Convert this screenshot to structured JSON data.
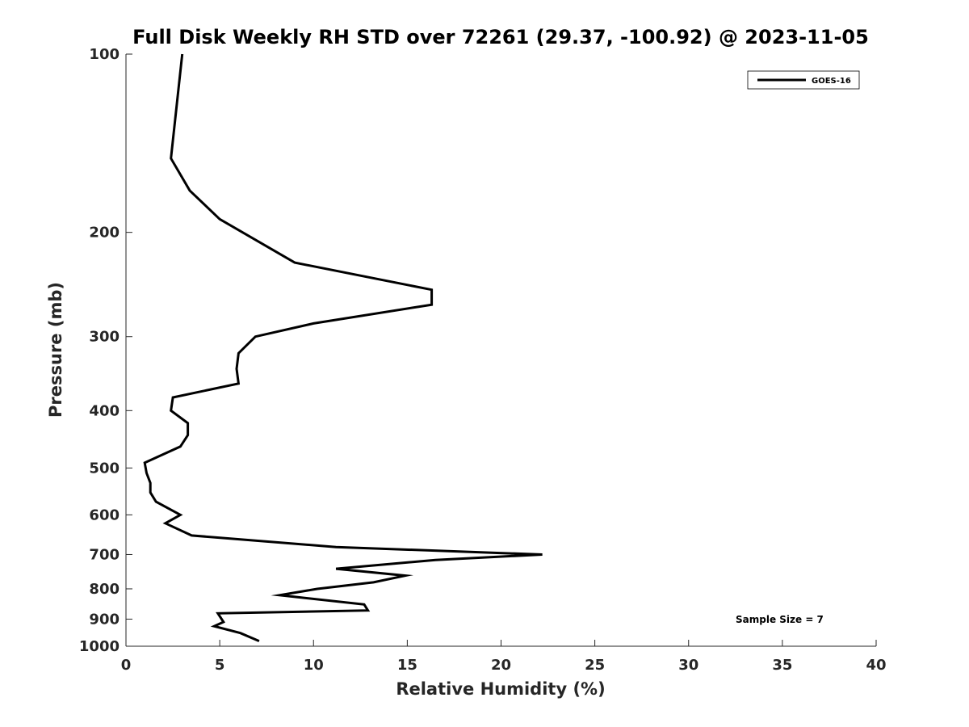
{
  "chart_data": {
    "type": "line",
    "title": "Full Disk Weekly RH STD over 72261 (29.37, -100.92) @ 2023-11-05",
    "xlabel": "Relative Humidity (%)",
    "ylabel": "Pressure (mb)",
    "xlim": [
      0,
      40
    ],
    "ylim": [
      100,
      1000
    ],
    "y_scale": "log",
    "y_reversed": true,
    "grid": false,
    "legend_position": "top-right",
    "x_ticks": [
      0,
      5,
      10,
      15,
      20,
      25,
      30,
      35,
      40
    ],
    "y_ticks": [
      100,
      200,
      300,
      400,
      500,
      600,
      700,
      800,
      900,
      1000
    ],
    "annotation": "Sample Size = 7",
    "series": [
      {
        "name": "GOES-16",
        "color": "#000000",
        "points": [
          [
            3.0,
            100
          ],
          [
            2.4,
            150
          ],
          [
            3.4,
            170
          ],
          [
            5.0,
            190
          ],
          [
            9.0,
            225
          ],
          [
            16.3,
            250
          ],
          [
            16.3,
            265
          ],
          [
            10.0,
            285
          ],
          [
            6.9,
            300
          ],
          [
            6.0,
            320
          ],
          [
            5.9,
            340
          ],
          [
            6.0,
            360
          ],
          [
            2.5,
            380
          ],
          [
            2.4,
            400
          ],
          [
            3.3,
            420
          ],
          [
            3.3,
            440
          ],
          [
            2.9,
            460
          ],
          [
            1.0,
            490
          ],
          [
            1.1,
            510
          ],
          [
            1.3,
            530
          ],
          [
            1.3,
            550
          ],
          [
            1.6,
            570
          ],
          [
            2.9,
            600
          ],
          [
            2.1,
            620
          ],
          [
            3.5,
            650
          ],
          [
            11.2,
            680
          ],
          [
            22.2,
            700
          ],
          [
            16.5,
            715
          ],
          [
            11.2,
            740
          ],
          [
            14.9,
            760
          ],
          [
            13.2,
            780
          ],
          [
            10.2,
            800
          ],
          [
            8.2,
            820
          ],
          [
            12.7,
            850
          ],
          [
            12.9,
            870
          ],
          [
            4.9,
            880
          ],
          [
            5.2,
            910
          ],
          [
            4.7,
            925
          ],
          [
            6.1,
            950
          ],
          [
            7.1,
            980
          ]
        ]
      }
    ]
  }
}
